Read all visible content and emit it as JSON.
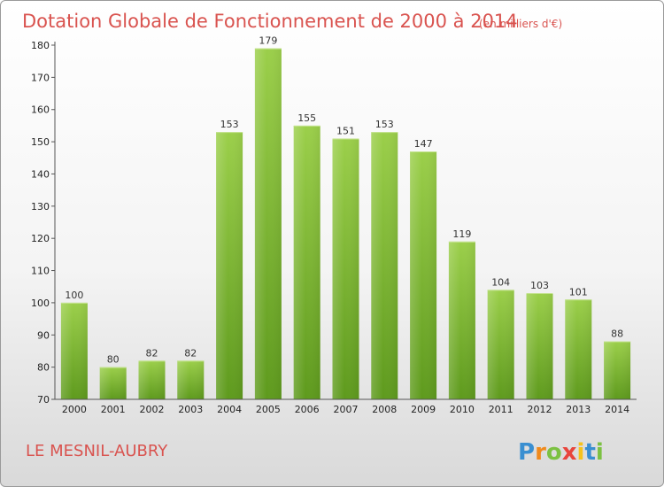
{
  "chart_data": {
    "type": "bar",
    "title": "Dotation Globale de Fonctionnement de 2000 à 2014",
    "subtitle": "(en milliers d'€)",
    "categories": [
      "2000",
      "2001",
      "2002",
      "2003",
      "2004",
      "2005",
      "2006",
      "2007",
      "2008",
      "2009",
      "2010",
      "2011",
      "2012",
      "2013",
      "2014"
    ],
    "values": [
      100,
      80,
      82,
      82,
      153,
      179,
      155,
      151,
      153,
      147,
      119,
      104,
      103,
      101,
      88
    ],
    "ylim": [
      70,
      180
    ],
    "yticks": [
      70,
      80,
      90,
      100,
      110,
      120,
      130,
      140,
      150,
      160,
      170,
      180
    ],
    "xlabel": "",
    "ylabel": "",
    "grid": false,
    "bar_color_top": "#9bcf4a",
    "bar_color_bottom": "#5e9a1d"
  },
  "commune": "LE MESNIL-AUBRY",
  "logo": {
    "letters": [
      "P",
      "r",
      "o",
      "x",
      "i",
      "t",
      "i"
    ],
    "colors": [
      "#3a8fd1",
      "#f08a1c",
      "#7cc142",
      "#e8453c",
      "#f6c21c",
      "#3a8fd1",
      "#7cc142"
    ]
  }
}
